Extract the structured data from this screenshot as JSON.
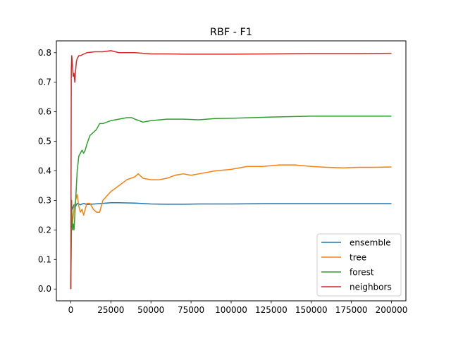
{
  "chart_data": {
    "type": "line",
    "title": "RBF - F1",
    "xlabel": "",
    "ylabel": "",
    "xlim": [
      -9000,
      209000
    ],
    "ylim": [
      -0.04,
      0.84
    ],
    "xticks": [
      0,
      25000,
      50000,
      75000,
      100000,
      125000,
      150000,
      175000,
      200000
    ],
    "xtick_labels": [
      "0",
      "25000",
      "50000",
      "75000",
      "100000",
      "125000",
      "150000",
      "175000",
      "200000"
    ],
    "yticks": [
      0.0,
      0.1,
      0.2,
      0.3,
      0.4,
      0.5,
      0.6,
      0.7,
      0.8
    ],
    "ytick_labels": [
      "0.0",
      "0.1",
      "0.2",
      "0.3",
      "0.4",
      "0.5",
      "0.6",
      "0.7",
      "0.8"
    ],
    "grid": false,
    "legend_position": "lower-right",
    "series": [
      {
        "name": "ensemble",
        "color": "#1f77b4",
        "x": [
          0,
          300,
          600,
          1000,
          2000,
          3000,
          4000,
          6000,
          8000,
          10000,
          15000,
          20000,
          25000,
          30000,
          40000,
          50000,
          60000,
          70000,
          80000,
          90000,
          100000,
          125000,
          150000,
          175000,
          200000
        ],
        "y": [
          0.0,
          0.3,
          0.28,
          0.27,
          0.285,
          0.28,
          0.29,
          0.285,
          0.29,
          0.286,
          0.288,
          0.29,
          0.292,
          0.292,
          0.291,
          0.288,
          0.287,
          0.287,
          0.288,
          0.288,
          0.288,
          0.289,
          0.289,
          0.289,
          0.289
        ]
      },
      {
        "name": "tree",
        "color": "#ff7f0e",
        "x": [
          0,
          500,
          1000,
          2000,
          3000,
          4000,
          5000,
          6000,
          7000,
          8000,
          10000,
          12000,
          14000,
          16000,
          18000,
          20000,
          25000,
          30000,
          35000,
          40000,
          42000,
          45000,
          50000,
          55000,
          60000,
          65000,
          70000,
          75000,
          80000,
          90000,
          100000,
          110000,
          120000,
          130000,
          140000,
          150000,
          160000,
          170000,
          180000,
          190000,
          200000
        ],
        "y": [
          0.0,
          0.26,
          0.22,
          0.27,
          0.3,
          0.32,
          0.28,
          0.26,
          0.27,
          0.25,
          0.29,
          0.29,
          0.27,
          0.26,
          0.26,
          0.3,
          0.33,
          0.35,
          0.37,
          0.38,
          0.39,
          0.375,
          0.37,
          0.37,
          0.375,
          0.385,
          0.39,
          0.385,
          0.39,
          0.4,
          0.405,
          0.415,
          0.415,
          0.42,
          0.42,
          0.415,
          0.412,
          0.41,
          0.412,
          0.412,
          0.413
        ]
      },
      {
        "name": "forest",
        "color": "#2ca02c",
        "x": [
          0,
          500,
          1000,
          1500,
          2000,
          3000,
          4000,
          5000,
          6000,
          7000,
          8000,
          9000,
          10000,
          12000,
          14000,
          16000,
          18000,
          20000,
          25000,
          30000,
          35000,
          38000,
          40000,
          45000,
          50000,
          60000,
          70000,
          80000,
          90000,
          100000,
          125000,
          150000,
          175000,
          200000
        ],
        "y": [
          0.0,
          0.3,
          0.2,
          0.22,
          0.2,
          0.3,
          0.4,
          0.45,
          0.46,
          0.47,
          0.46,
          0.47,
          0.49,
          0.52,
          0.53,
          0.54,
          0.56,
          0.56,
          0.57,
          0.575,
          0.58,
          0.58,
          0.575,
          0.565,
          0.57,
          0.575,
          0.575,
          0.573,
          0.577,
          0.578,
          0.582,
          0.585,
          0.585,
          0.585
        ]
      },
      {
        "name": "neighbors",
        "color": "#d62728",
        "x": [
          0,
          300,
          600,
          1000,
          1500,
          2000,
          2500,
          3000,
          3500,
          4000,
          5000,
          6000,
          8000,
          10000,
          15000,
          20000,
          25000,
          30000,
          40000,
          50000,
          60000,
          70000,
          80000,
          90000,
          100000,
          125000,
          150000,
          175000,
          200000
        ],
        "y": [
          0.0,
          0.74,
          0.79,
          0.76,
          0.72,
          0.73,
          0.7,
          0.74,
          0.77,
          0.78,
          0.79,
          0.79,
          0.795,
          0.8,
          0.803,
          0.803,
          0.807,
          0.8,
          0.8,
          0.796,
          0.796,
          0.795,
          0.795,
          0.795,
          0.795,
          0.796,
          0.797,
          0.797,
          0.798
        ]
      }
    ]
  }
}
